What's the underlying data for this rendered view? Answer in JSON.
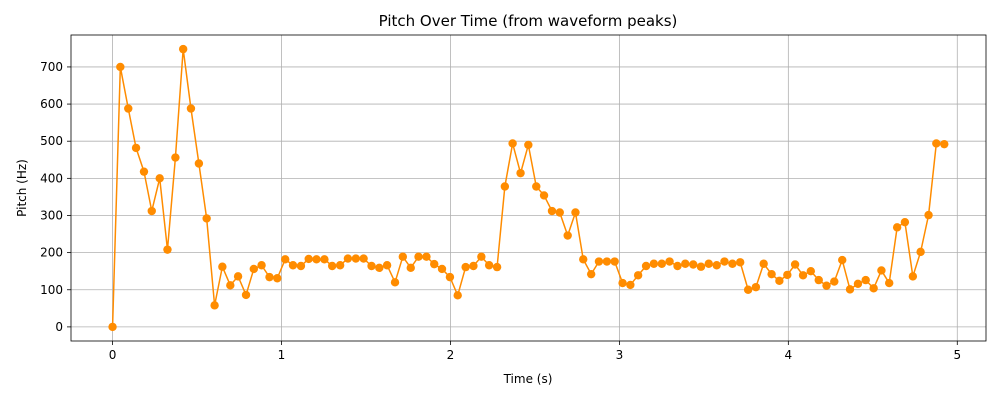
{
  "chart_data": {
    "type": "line",
    "title": "Pitch Over Time (from waveform peaks)",
    "xlabel": "Time (s)",
    "ylabel": "Pitch (Hz)",
    "xlim": [
      -0.246,
      5.17
    ],
    "ylim": [
      -38,
      786
    ],
    "xticks": [
      0,
      1,
      2,
      3,
      4,
      5
    ],
    "xtick_labels": [
      "0",
      "1",
      "2",
      "3",
      "4",
      "5"
    ],
    "yticks": [
      0,
      100,
      200,
      300,
      400,
      500,
      600,
      700
    ],
    "ytick_labels": [
      "0",
      "100",
      "200",
      "300",
      "400",
      "500",
      "600",
      "700"
    ],
    "grid": true,
    "series": [
      {
        "color": "#ff8c00",
        "marker": "circle",
        "x": [
          0.0,
          0.046,
          0.093,
          0.139,
          0.186,
          0.232,
          0.279,
          0.325,
          0.372,
          0.418,
          0.464,
          0.511,
          0.557,
          0.604,
          0.65,
          0.697,
          0.743,
          0.79,
          0.836,
          0.882,
          0.929,
          0.975,
          1.022,
          1.068,
          1.115,
          1.161,
          1.207,
          1.254,
          1.3,
          1.347,
          1.393,
          1.44,
          1.486,
          1.533,
          1.579,
          1.625,
          1.672,
          1.718,
          1.765,
          1.811,
          1.858,
          1.904,
          1.95,
          1.997,
          2.043,
          2.09,
          2.136,
          2.183,
          2.229,
          2.276,
          2.322,
          2.368,
          2.415,
          2.461,
          2.508,
          2.554,
          2.601,
          2.647,
          2.694,
          2.74,
          2.786,
          2.833,
          2.879,
          2.926,
          2.972,
          3.019,
          3.065,
          3.111,
          3.158,
          3.204,
          3.251,
          3.297,
          3.344,
          3.39,
          3.437,
          3.483,
          3.529,
          3.576,
          3.622,
          3.669,
          3.715,
          3.762,
          3.808,
          3.854,
          3.901,
          3.947,
          3.994,
          4.04,
          4.087,
          4.133,
          4.18,
          4.226,
          4.272,
          4.319,
          4.365,
          4.412,
          4.458,
          4.505,
          4.551,
          4.597,
          4.644,
          4.69,
          4.737,
          4.783,
          4.83,
          4.876,
          4.923
        ],
        "y": [
          0,
          700,
          588,
          482,
          418,
          312,
          400,
          208,
          456,
          748,
          588,
          440,
          292,
          58,
          162,
          112,
          136,
          86,
          156,
          166,
          134,
          131,
          182,
          166,
          164,
          183,
          182,
          182,
          164,
          166,
          184,
          184,
          184,
          164,
          159,
          166,
          120,
          189,
          159,
          189,
          189,
          169,
          156,
          134,
          85,
          161,
          164,
          189,
          166,
          161,
          378,
          494,
          414,
          490,
          378,
          354,
          312,
          308,
          246,
          308,
          182,
          142,
          176,
          176,
          176,
          118,
          113,
          139,
          164,
          170,
          170,
          176,
          164,
          170,
          168,
          162,
          170,
          166,
          176,
          170,
          174,
          100,
          107,
          170,
          142,
          124,
          140,
          168,
          139,
          150,
          126,
          111,
          122,
          180,
          101,
          116,
          126,
          104,
          152,
          118,
          268,
          282,
          136,
          202,
          301,
          494,
          492
        ]
      }
    ]
  }
}
